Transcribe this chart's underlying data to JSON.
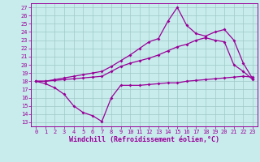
{
  "xlabel": "Windchill (Refroidissement éolien,°C)",
  "background_color": "#c8ecec",
  "grid_color": "#a0c8c8",
  "line_color": "#990099",
  "xlim": [
    -0.5,
    23.5
  ],
  "ylim": [
    12.5,
    27.5
  ],
  "xticks": [
    0,
    1,
    2,
    3,
    4,
    5,
    6,
    7,
    8,
    9,
    10,
    11,
    12,
    13,
    14,
    15,
    16,
    17,
    18,
    19,
    20,
    21,
    22,
    23
  ],
  "yticks": [
    13,
    14,
    15,
    16,
    17,
    18,
    19,
    20,
    21,
    22,
    23,
    24,
    25,
    26,
    27
  ],
  "line1_x": [
    0,
    1,
    2,
    3,
    4,
    5,
    6,
    7,
    8,
    9,
    10,
    11,
    12,
    13,
    14,
    15,
    16,
    17,
    18,
    19,
    20,
    21,
    22,
    23
  ],
  "line1_y": [
    18,
    17.7,
    17.2,
    16.4,
    15.0,
    14.2,
    13.8,
    13.1,
    16.0,
    17.5,
    17.5,
    17.5,
    17.6,
    17.7,
    17.8,
    17.8,
    18.0,
    18.1,
    18.2,
    18.3,
    18.4,
    18.5,
    18.6,
    18.5
  ],
  "line2_x": [
    0,
    1,
    2,
    3,
    4,
    5,
    6,
    7,
    8,
    9,
    10,
    11,
    12,
    13,
    14,
    15,
    16,
    17,
    18,
    19,
    20,
    21,
    22,
    23
  ],
  "line2_y": [
    18,
    18.0,
    18.1,
    18.2,
    18.3,
    18.4,
    18.5,
    18.6,
    19.2,
    19.8,
    20.2,
    20.5,
    20.8,
    21.2,
    21.7,
    22.2,
    22.5,
    23.0,
    23.3,
    23.0,
    22.8,
    20.0,
    19.2,
    18.2
  ],
  "line3_x": [
    0,
    1,
    2,
    3,
    4,
    5,
    6,
    7,
    8,
    9,
    10,
    11,
    12,
    13,
    14,
    15,
    16,
    17,
    18,
    19,
    20,
    21,
    22,
    23
  ],
  "line3_y": [
    18,
    18.0,
    18.2,
    18.4,
    18.6,
    18.8,
    19.0,
    19.2,
    19.8,
    20.5,
    21.2,
    22.0,
    22.8,
    23.2,
    25.3,
    27.0,
    24.8,
    23.8,
    23.5,
    24.0,
    24.3,
    23.0,
    20.2,
    18.3
  ],
  "marker": "D",
  "markersize": 2,
  "linewidth": 0.9,
  "tick_fontsize": 5,
  "xlabel_fontsize": 6
}
